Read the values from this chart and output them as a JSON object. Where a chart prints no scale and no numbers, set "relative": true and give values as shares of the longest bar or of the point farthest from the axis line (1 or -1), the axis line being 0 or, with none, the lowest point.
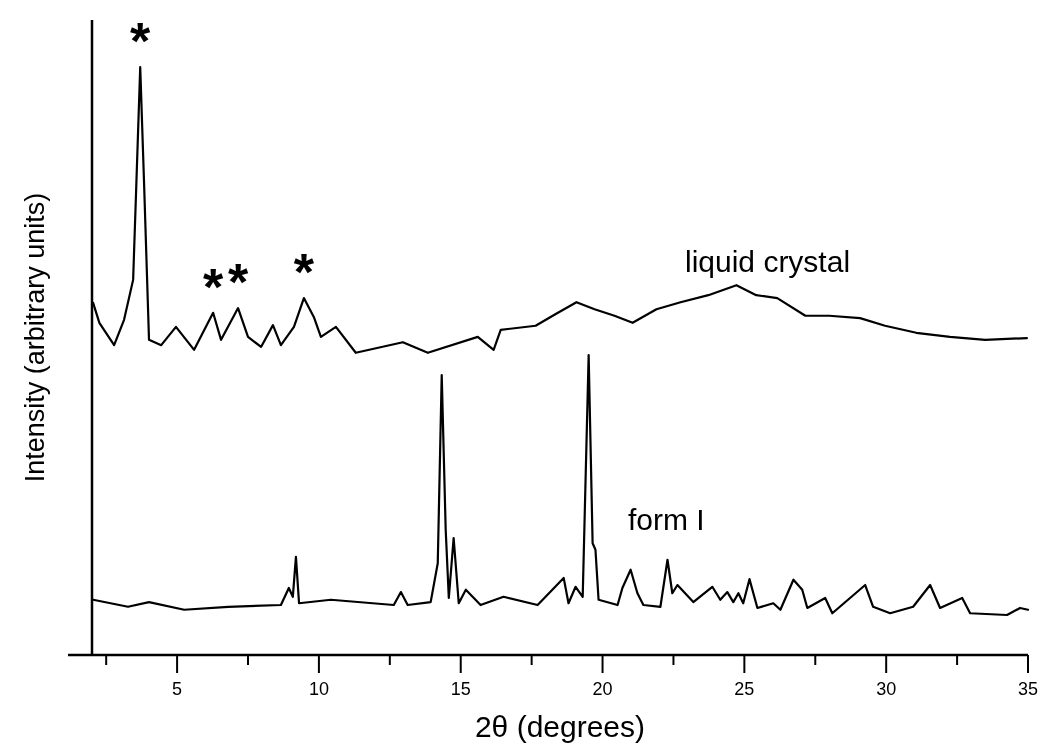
{
  "chart_data": {
    "type": "line",
    "relative": true,
    "xlabel": "2θ (degrees)",
    "ylabel": "Intensity (arbitrary units)",
    "xlim": [
      2,
      35
    ],
    "xticks": [
      {
        "value": 2.5,
        "label": null
      },
      5,
      {
        "value": 7.5,
        "label": null
      },
      10,
      {
        "value": 12.5,
        "label": null
      },
      15,
      {
        "value": 17.5,
        "label": null
      },
      20,
      {
        "value": 22.5,
        "label": null
      },
      25,
      {
        "value": 27.5,
        "label": null
      },
      30,
      {
        "value": 32.5,
        "label": null
      },
      35
    ],
    "marker": "none",
    "line_style": "solid",
    "grid": false,
    "annotations": [
      {
        "text": "*",
        "x": 3.7,
        "y": 1.0
      },
      {
        "text": "*",
        "x": 6.27,
        "y": 0.582
      },
      {
        "text": "*",
        "x": 7.15,
        "y": 0.59
      },
      {
        "text": "*",
        "x": 9.47,
        "y": 0.607
      }
    ],
    "series": [
      {
        "name": "liquid crystal",
        "color": "#000000",
        "x": [
          2.04,
          2.26,
          2.78,
          3.13,
          3.45,
          3.56,
          3.7,
          3.84,
          4.01,
          4.44,
          4.96,
          5.6,
          6.27,
          6.55,
          7.15,
          7.5,
          7.96,
          8.38,
          8.66,
          9.12,
          9.47,
          9.82,
          10.07,
          10.6,
          11.3,
          12.96,
          13.84,
          15.6,
          16.16,
          16.41,
          17.64,
          18.35,
          19.08,
          19.72,
          20.42,
          21.06,
          21.9,
          22.75,
          23.73,
          24.72,
          25.42,
          26.16,
          27.15,
          27.99,
          29.08,
          29.96,
          31.06,
          32.25,
          33.49,
          34.96
        ],
        "values": [
          0.599,
          0.565,
          0.527,
          0.57,
          0.638,
          0.796,
          1.0,
          0.796,
          0.536,
          0.527,
          0.558,
          0.519,
          0.582,
          0.536,
          0.59,
          0.541,
          0.524,
          0.561,
          0.527,
          0.558,
          0.607,
          0.575,
          0.541,
          0.558,
          0.514,
          0.532,
          0.514,
          0.541,
          0.519,
          0.553,
          0.56,
          0.58,
          0.6,
          0.588,
          0.577,
          0.565,
          0.588,
          0.6,
          0.612,
          0.629,
          0.612,
          0.607,
          0.577,
          0.577,
          0.573,
          0.56,
          0.548,
          0.541,
          0.536,
          0.539
        ]
      },
      {
        "name": "form I",
        "color": "#000000",
        "x": [
          2.04,
          3.27,
          4.01,
          5.25,
          6.8,
          8.66,
          8.94,
          9.08,
          9.19,
          9.3,
          10.42,
          12.64,
          12.89,
          13.13,
          13.94,
          14.19,
          14.33,
          14.47,
          14.58,
          14.75,
          14.93,
          15.18,
          15.7,
          16.51,
          17.71,
          18.63,
          18.8,
          19.05,
          19.3,
          19.51,
          19.65,
          19.75,
          19.86,
          20.53,
          20.7,
          20.99,
          21.23,
          21.44,
          22.04,
          22.29,
          22.46,
          22.64,
          23.2,
          23.87,
          24.15,
          24.4,
          24.61,
          24.79,
          24.96,
          25.18,
          25.46,
          26.02,
          26.27,
          26.73,
          27.04,
          27.22,
          27.85,
          28.1,
          29.26,
          29.54,
          30.14,
          30.95,
          31.55,
          31.9,
          32.68,
          32.96,
          34.26,
          34.72,
          35.0
        ],
        "values": [
          0.094,
          0.082,
          0.09,
          0.077,
          0.082,
          0.085,
          0.114,
          0.099,
          0.167,
          0.088,
          0.094,
          0.085,
          0.107,
          0.085,
          0.09,
          0.156,
          0.476,
          0.213,
          0.097,
          0.199,
          0.088,
          0.111,
          0.085,
          0.099,
          0.085,
          0.131,
          0.088,
          0.116,
          0.099,
          0.51,
          0.19,
          0.179,
          0.094,
          0.085,
          0.114,
          0.145,
          0.105,
          0.085,
          0.082,
          0.162,
          0.105,
          0.119,
          0.09,
          0.116,
          0.094,
          0.107,
          0.09,
          0.105,
          0.088,
          0.129,
          0.08,
          0.088,
          0.077,
          0.128,
          0.111,
          0.08,
          0.097,
          0.071,
          0.119,
          0.082,
          0.071,
          0.082,
          0.119,
          0.08,
          0.097,
          0.071,
          0.068,
          0.08,
          0.077
        ]
      }
    ]
  }
}
